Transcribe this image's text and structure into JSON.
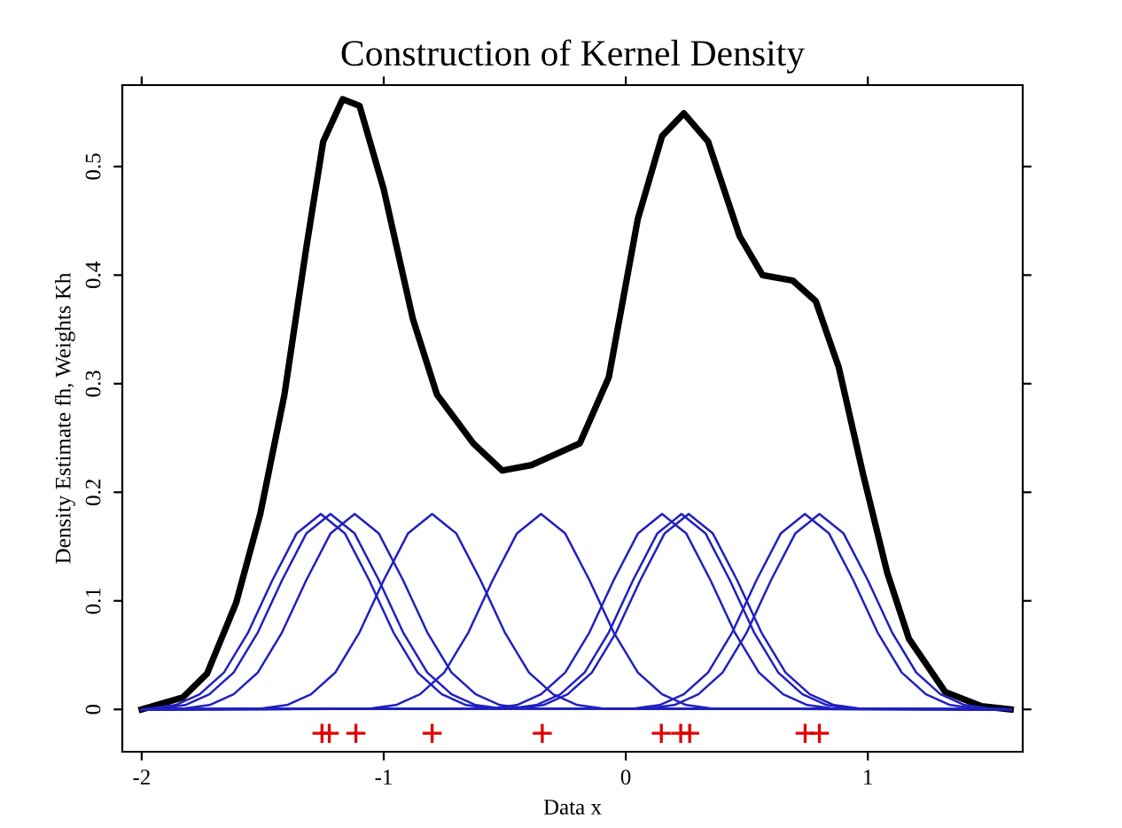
{
  "chart_data": {
    "type": "line",
    "title": "Construction of Kernel Density",
    "xlabel": "Data x",
    "ylabel": "Density Estimate fh, Weights Kh",
    "xlim": [
      -2.08,
      1.64
    ],
    "ylim": [
      -0.039,
      0.575
    ],
    "xticks": [
      -2,
      -1,
      0,
      1
    ],
    "yticks": [
      0,
      0.1,
      0.2,
      0.3,
      0.4,
      0.5
    ],
    "grid": false,
    "legend": false,
    "line_style": "solid",
    "marker": "none",
    "series": [
      {
        "color": "#000000",
        "x": [
          -2.0,
          -1.83,
          -1.73,
          -1.61,
          -1.51,
          -1.41,
          -1.32,
          -1.25,
          -1.17,
          -1.1,
          -1.0,
          -0.88,
          -0.78,
          -0.63,
          -0.51,
          -0.39,
          -0.19,
          -0.07,
          0.05,
          0.15,
          0.24,
          0.34,
          0.47,
          0.565,
          0.69,
          0.785,
          0.88,
          0.98,
          1.08,
          1.17,
          1.32,
          1.47,
          1.59
        ],
        "values": [
          0,
          0.011,
          0.033,
          0.098,
          0.18,
          0.29,
          0.425,
          0.523,
          0.562,
          0.556,
          0.479,
          0.36,
          0.29,
          0.245,
          0.22,
          0.225,
          0.245,
          0.306,
          0.452,
          0.528,
          0.549,
          0.523,
          0.436,
          0.4,
          0.395,
          0.376,
          0.315,
          0.217,
          0.126,
          0.065,
          0.016,
          0.003,
          0
        ]
      },
      {
        "color": "#2020c0",
        "x": [
          -2.0,
          -1.96,
          -1.86,
          -1.76,
          -1.66,
          -1.56,
          -1.46,
          -1.36,
          -1.26,
          -1.16,
          -1.06,
          -0.96,
          -0.86,
          -0.76,
          -0.66,
          -0.56,
          1.59
        ],
        "values": [
          0,
          0.001,
          0.004,
          0.014,
          0.034,
          0.071,
          0.119,
          0.162,
          0.18,
          0.162,
          0.119,
          0.071,
          0.034,
          0.014,
          0.004,
          0.001,
          0
        ]
      },
      {
        "color": "#2020c0",
        "x": [
          -2.0,
          -1.92,
          -1.82,
          -1.72,
          -1.62,
          -1.52,
          -1.42,
          -1.32,
          -1.22,
          -1.12,
          -1.02,
          -0.92,
          -0.82,
          -0.72,
          -0.62,
          -0.52,
          1.59
        ],
        "values": [
          0,
          0.001,
          0.004,
          0.014,
          0.034,
          0.071,
          0.119,
          0.162,
          0.18,
          0.162,
          0.119,
          0.071,
          0.034,
          0.014,
          0.004,
          0.001,
          0
        ]
      },
      {
        "color": "#2020c0",
        "x": [
          -2.0,
          -1.82,
          -1.72,
          -1.62,
          -1.52,
          -1.42,
          -1.32,
          -1.22,
          -1.12,
          -1.02,
          -0.92,
          -0.82,
          -0.72,
          -0.62,
          -0.52,
          -0.42,
          1.59
        ],
        "values": [
          0,
          0.001,
          0.004,
          0.014,
          0.034,
          0.071,
          0.119,
          0.162,
          0.18,
          0.162,
          0.119,
          0.071,
          0.034,
          0.014,
          0.004,
          0.001,
          0
        ]
      },
      {
        "color": "#2020c0",
        "x": [
          -2.0,
          -1.5,
          -1.4,
          -1.3,
          -1.2,
          -1.1,
          -1.0,
          -0.9,
          -0.8,
          -0.7,
          -0.6,
          -0.5,
          -0.4,
          -0.3,
          -0.2,
          -0.1,
          1.59
        ],
        "values": [
          0,
          0.001,
          0.004,
          0.014,
          0.034,
          0.071,
          0.119,
          0.162,
          0.18,
          0.162,
          0.119,
          0.071,
          0.034,
          0.014,
          0.004,
          0.001,
          0
        ]
      },
      {
        "color": "#2020c0",
        "x": [
          -2.0,
          -1.05,
          -0.95,
          -0.85,
          -0.75,
          -0.65,
          -0.55,
          -0.45,
          -0.35,
          -0.25,
          -0.15,
          -0.05,
          0.05,
          0.15,
          0.25,
          0.35,
          1.59
        ],
        "values": [
          0,
          0.001,
          0.004,
          0.014,
          0.034,
          0.071,
          0.119,
          0.162,
          0.18,
          0.162,
          0.119,
          0.071,
          0.034,
          0.014,
          0.004,
          0.001,
          0
        ]
      },
      {
        "color": "#2020c0",
        "x": [
          -2.0,
          -0.55,
          -0.45,
          -0.35,
          -0.25,
          -0.15,
          -0.05,
          0.05,
          0.15,
          0.25,
          0.35,
          0.45,
          0.55,
          0.65,
          0.75,
          0.85,
          1.59
        ],
        "values": [
          0,
          0.001,
          0.004,
          0.014,
          0.034,
          0.071,
          0.119,
          0.162,
          0.18,
          0.162,
          0.119,
          0.071,
          0.034,
          0.014,
          0.004,
          0.001,
          0
        ]
      },
      {
        "color": "#2020c0",
        "x": [
          -2.0,
          -0.47,
          -0.37,
          -0.27,
          -0.17,
          -0.07,
          0.03,
          0.13,
          0.23,
          0.33,
          0.43,
          0.53,
          0.63,
          0.73,
          0.83,
          0.93,
          1.59
        ],
        "values": [
          0,
          0.001,
          0.004,
          0.014,
          0.034,
          0.071,
          0.119,
          0.162,
          0.18,
          0.162,
          0.119,
          0.071,
          0.034,
          0.014,
          0.004,
          0.001,
          0
        ]
      },
      {
        "color": "#2020c0",
        "x": [
          -2.0,
          -0.44,
          -0.34,
          -0.24,
          -0.14,
          -0.04,
          0.06,
          0.16,
          0.26,
          0.36,
          0.46,
          0.56,
          0.66,
          0.76,
          0.86,
          0.96,
          1.59
        ],
        "values": [
          0,
          0.001,
          0.004,
          0.014,
          0.034,
          0.071,
          0.119,
          0.162,
          0.18,
          0.162,
          0.119,
          0.071,
          0.034,
          0.014,
          0.004,
          0.001,
          0
        ]
      },
      {
        "color": "#2020c0",
        "x": [
          -2.0,
          0.04,
          0.14,
          0.24,
          0.34,
          0.44,
          0.54,
          0.64,
          0.74,
          0.84,
          0.94,
          1.04,
          1.14,
          1.24,
          1.34,
          1.44,
          1.59
        ],
        "values": [
          0,
          0.001,
          0.004,
          0.014,
          0.034,
          0.071,
          0.119,
          0.162,
          0.18,
          0.162,
          0.119,
          0.071,
          0.034,
          0.014,
          0.004,
          0.001,
          0
        ]
      },
      {
        "color": "#2020c0",
        "x": [
          -2.0,
          0.1,
          0.2,
          0.3,
          0.4,
          0.5,
          0.6,
          0.7,
          0.8,
          0.9,
          1.0,
          1.1,
          1.2,
          1.3,
          1.4,
          1.5,
          1.59
        ],
        "values": [
          0,
          0.001,
          0.004,
          0.014,
          0.034,
          0.071,
          0.119,
          0.162,
          0.18,
          0.162,
          0.119,
          0.071,
          0.034,
          0.014,
          0.004,
          0.001,
          0
        ]
      },
      {
        "type": "scatter",
        "marker": "cross",
        "color": "#e00000",
        "x": [
          -1.255,
          -1.225,
          -1.115,
          -0.8,
          -0.345,
          0.147,
          0.227,
          0.264,
          0.741,
          0.8
        ],
        "values": [
          -0.022,
          -0.022,
          -0.022,
          -0.022,
          -0.022,
          -0.022,
          -0.022,
          -0.022,
          -0.022,
          -0.022
        ]
      }
    ]
  }
}
